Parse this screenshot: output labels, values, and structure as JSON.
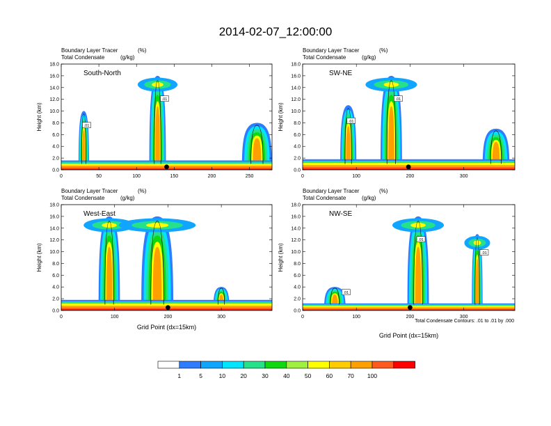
{
  "page_title": "2014-02-07_12:00:00",
  "colors": {
    "levels": [
      "#ffffff",
      "#2e7dff",
      "#10a5ff",
      "#00e5ff",
      "#25e28a",
      "#10d810",
      "#a0f040",
      "#ffff00",
      "#ffcc00",
      "#ffa000",
      "#ff5a1e",
      "#ff0000"
    ]
  },
  "colorbar": {
    "labels": [
      "1",
      "5",
      "10",
      "20",
      "30",
      "40",
      "50",
      "60",
      "70",
      "100"
    ]
  },
  "footnote": "Total Condensate Contours: .01 to .01 by .000",
  "chart_data": [
    {
      "type": "heatmap",
      "panel_label": "South-North",
      "title_line1": "Boundary Layer Tracer",
      "title_unit1": "(%)",
      "title_line2": "Total Condensate",
      "title_unit2": "(g/kg)",
      "ylabel": "Height (km)",
      "xlabel": "",
      "xlim": [
        0,
        280
      ],
      "ylim": [
        0,
        18
      ],
      "xticks": [
        0,
        50,
        100,
        150,
        200,
        250
      ],
      "yticks": [
        "0.0",
        "2.0",
        "4.0",
        "6.0",
        "8.0",
        "10.0",
        "12.0",
        "14.0",
        "16.0",
        "18.0"
      ],
      "contour_labels": [
        ".01",
        ".01"
      ],
      "marker_x": 140,
      "surface_tracer_top_km": 1.6,
      "plumes": [
        {
          "x": 30,
          "top_km": 10,
          "width": 14
        },
        {
          "x": 128,
          "top_km": 16,
          "width": 22
        },
        {
          "x": 260,
          "top_km": 8,
          "width": 40
        }
      ]
    },
    {
      "type": "heatmap",
      "panel_label": "SW-NE",
      "title_line1": "Boundary Layer Tracer",
      "title_unit1": "(%)",
      "title_line2": "Total Condensate",
      "title_unit2": "(g/kg)",
      "ylabel": "Height (km)",
      "xlabel": "",
      "xlim": [
        0,
        395
      ],
      "ylim": [
        0,
        18
      ],
      "xticks": [
        0,
        100,
        200,
        300
      ],
      "yticks": [
        "0.0",
        "2.0",
        "4.0",
        "6.0",
        "8.0",
        "10.0",
        "12.0",
        "14.0",
        "16.0",
        "18.0"
      ],
      "contour_labels": [
        ".01",
        ".01"
      ],
      "marker_x": 197,
      "surface_tracer_top_km": 1.8,
      "plumes": [
        {
          "x": 85,
          "top_km": 11,
          "width": 30
        },
        {
          "x": 165,
          "top_km": 16,
          "width": 40
        },
        {
          "x": 360,
          "top_km": 7,
          "width": 50
        }
      ]
    },
    {
      "type": "heatmap",
      "panel_label": "West-East",
      "title_line1": "Boundary Layer Tracer",
      "title_unit1": "(%)",
      "title_line2": "Total Condensate",
      "title_unit2": "(g/kg)",
      "ylabel": "Height (km)",
      "xlabel": "Grid Point (dx=15km)",
      "xlim": [
        0,
        395
      ],
      "ylim": [
        0,
        18
      ],
      "xticks": [
        0,
        100,
        200,
        300
      ],
      "yticks": [
        "0.0",
        "2.0",
        "4.0",
        "6.0",
        "8.0",
        "10.0",
        "12.0",
        "14.0",
        "16.0",
        "18.0"
      ],
      "contour_labels": [],
      "marker_x": 200,
      "surface_tracer_top_km": 1.8,
      "plumes": [
        {
          "x": 90,
          "top_km": 16,
          "width": 40
        },
        {
          "x": 180,
          "top_km": 16,
          "width": 60
        },
        {
          "x": 300,
          "top_km": 4,
          "width": 30
        }
      ]
    },
    {
      "type": "heatmap",
      "panel_label": "NW-SE",
      "title_line1": "Boundary Layer Tracer",
      "title_unit1": "(%)",
      "title_line2": "Total Condensate",
      "title_unit2": "(g/kg)",
      "ylabel": "Height (km)",
      "xlabel": "Grid Point (dx=15km)",
      "xlim": [
        0,
        395
      ],
      "ylim": [
        0,
        18
      ],
      "xticks": [
        0,
        100,
        200,
        300
      ],
      "yticks": [
        "0.0",
        "2.0",
        "4.0",
        "6.0",
        "8.0",
        "10.0",
        "12.0",
        "14.0",
        "16.0",
        "18.0"
      ],
      "contour_labels": [
        ".01",
        ".01",
        ".01"
      ],
      "marker_x": 200,
      "surface_tracer_top_km": 1.2,
      "plumes": [
        {
          "x": 215,
          "top_km": 16,
          "width": 40
        },
        {
          "x": 325,
          "top_km": 13,
          "width": 20
        },
        {
          "x": 60,
          "top_km": 4,
          "width": 40
        }
      ]
    }
  ]
}
